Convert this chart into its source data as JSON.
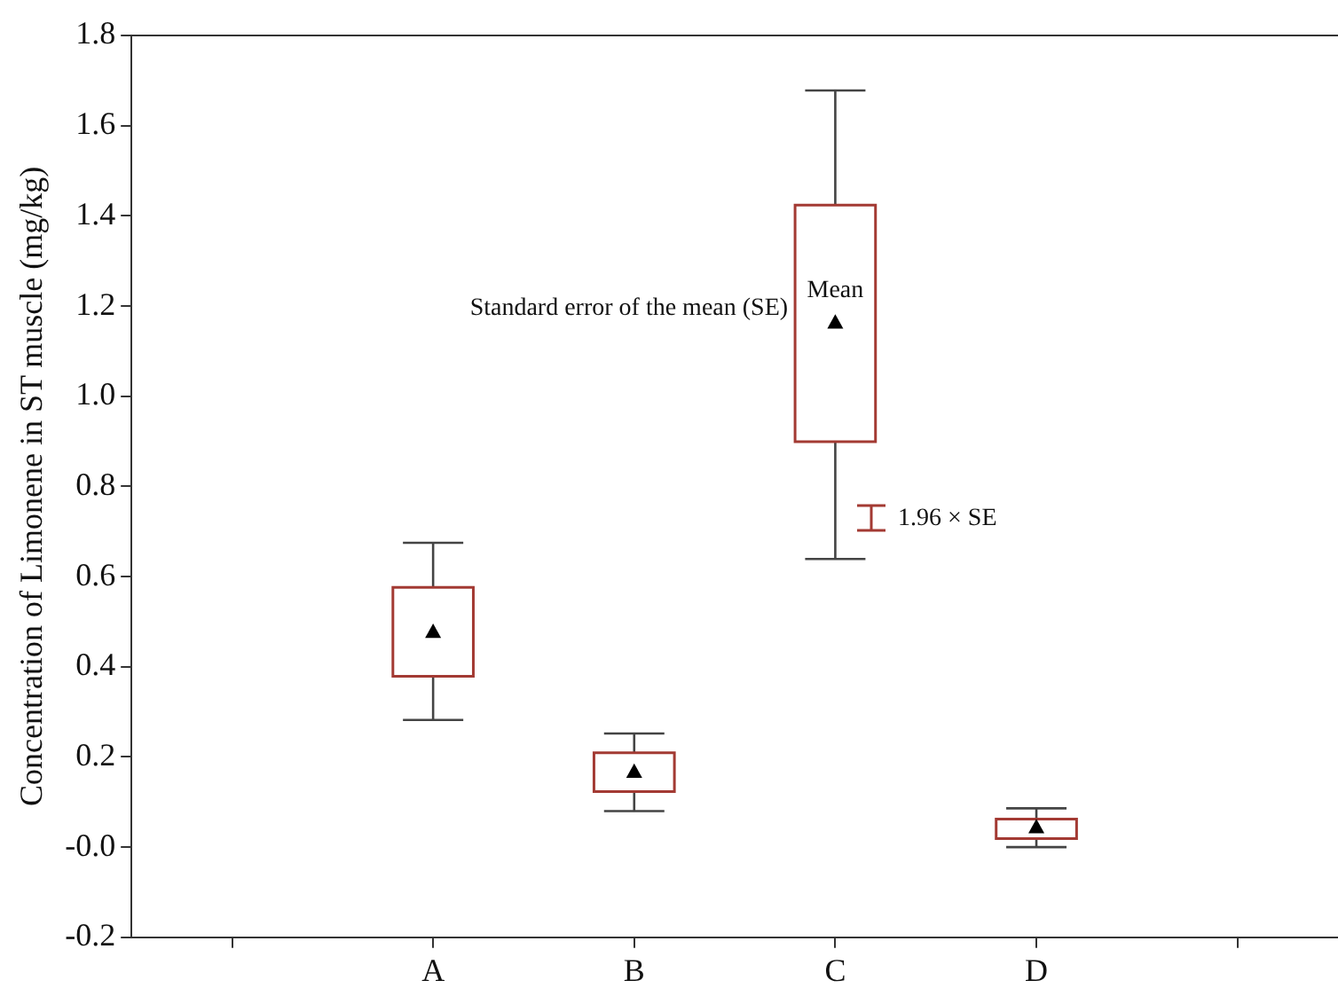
{
  "chart_data": {
    "type": "box",
    "ylabel": "Concentration of Limonene in ST muscle (mg/kg)",
    "categories": [
      null,
      "A",
      "B",
      "C",
      "D",
      null
    ],
    "boxes": [
      null,
      {
        "low": 0.282,
        "q1": 0.379,
        "median": 0.478,
        "q3": 0.576,
        "high": 0.675
      },
      {
        "low": 0.08,
        "q1": 0.123,
        "median": 0.168,
        "q3": 0.209,
        "high": 0.252
      },
      {
        "low": 0.639,
        "q1": 0.899,
        "median": 1.164,
        "q3": 1.424,
        "high": 1.678
      },
      {
        "low": 0.0,
        "q1": 0.019,
        "median": 0.045,
        "q3": 0.062,
        "high": 0.086
      },
      null
    ],
    "color": "#a33a33",
    "ylim": [
      -0.2,
      1.8
    ],
    "yticks": [
      -0.2,
      {
        "value": 0,
        "label": "-0.0"
      },
      0.2,
      0.4,
      0.6,
      0.8,
      {
        "value": 1,
        "label": "1.0"
      },
      1.2,
      1.4,
      1.6,
      1.8
    ],
    "marker": "triangle",
    "grid": false,
    "legend": false,
    "annotations": [
      "Mean",
      "Standard error of the mean (SE)",
      "1.96 × SE"
    ]
  }
}
